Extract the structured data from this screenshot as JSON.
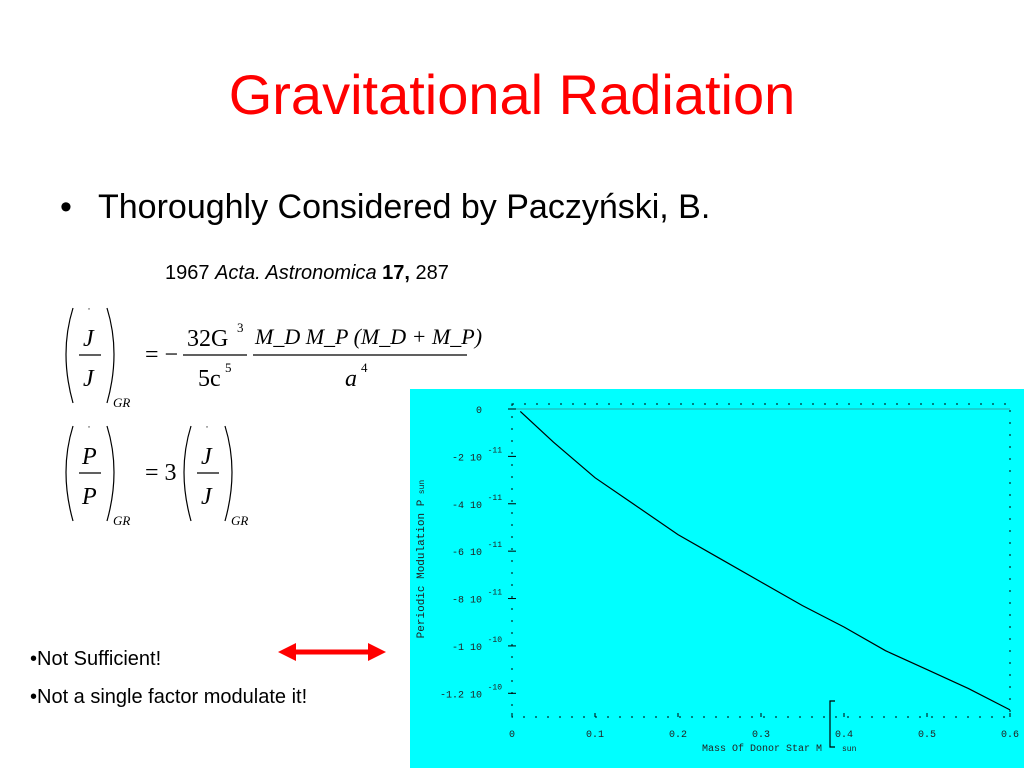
{
  "slide": {
    "title": "Gravitational Radiation",
    "bullet_main": "Thoroughly Considered by Paczyński, B.",
    "citation": {
      "year": "1967",
      "journal": "Acta. Astronomica",
      "volume": "17,",
      "page": "287"
    },
    "bullets_small": [
      "•Not Sufficient!",
      "•Not a single factor modulate it!"
    ]
  },
  "formulas": {
    "eq1": {
      "lhs_num": "J",
      "lhs_den": "J",
      "lhs_sub": "GR",
      "equals": "= −",
      "coef_num": "32G",
      "coef_num_exp": "3",
      "coef_den": "5c",
      "coef_den_exp": "5",
      "rhs_num": "M_D M_P (M_D + M_P)",
      "rhs_den": "a",
      "rhs_den_exp": "4"
    },
    "eq2": {
      "lhs_num": "P",
      "lhs_den": "P",
      "lhs_sub": "GR",
      "equals": "= 3",
      "rhs_num": "J",
      "rhs_den": "J",
      "rhs_sub": "GR"
    }
  },
  "colors": {
    "title": "#ff0000",
    "arrow": "#ff0000",
    "chart_background": "#00ffff"
  },
  "chart_data": {
    "type": "line",
    "xlabel": "Mass  Of  Donor  Star  M",
    "xlabel_sub": "sun",
    "ylabel": "Periodic Modulation  P",
    "ylabel_sub": "sun",
    "xlim": [
      0,
      0.6
    ],
    "ylim": [
      -1.3e-10,
      0
    ],
    "x_ticks": [
      "0",
      "0.1",
      "0.2",
      "0.3",
      "0.4",
      "0.5",
      "0.6"
    ],
    "y_ticks": [
      {
        "value": 0,
        "label": "0"
      },
      {
        "value": -2e-11,
        "label": "-2 10",
        "exp": "-11"
      },
      {
        "value": -4e-11,
        "label": "-4 10",
        "exp": "-11"
      },
      {
        "value": -6e-11,
        "label": "-6 10",
        "exp": "-11"
      },
      {
        "value": -8e-11,
        "label": "-8 10",
        "exp": "-11"
      },
      {
        "value": -1e-10,
        "label": "-1 10",
        "exp": "-10"
      },
      {
        "value": -1.2e-10,
        "label": "-1.2 10",
        "exp": "-10"
      }
    ],
    "grid": false,
    "series": [
      {
        "x": [
          0.01,
          0.05,
          0.1,
          0.15,
          0.2,
          0.25,
          0.3,
          0.35,
          0.4,
          0.45,
          0.5,
          0.55,
          0.6
        ],
        "y": [
          -1e-12,
          -1.4e-11,
          -2.9e-11,
          -4.1e-11,
          -5.3e-11,
          -6.3e-11,
          -7.3e-11,
          -8.3e-11,
          -9.2e-11,
          -1.02e-10,
          -1.1e-10,
          -1.18e-10,
          -1.27e-10
        ]
      }
    ]
  }
}
